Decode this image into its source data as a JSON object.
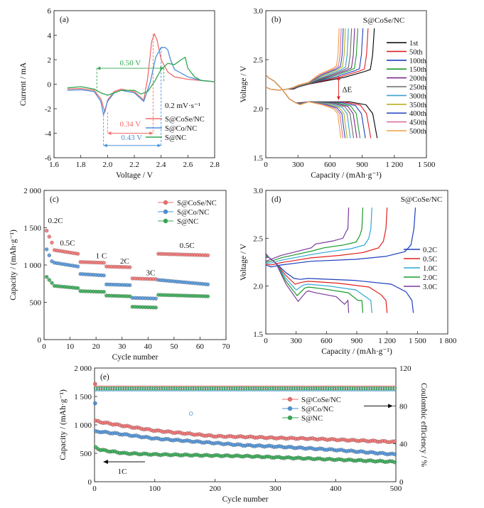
{
  "colors": {
    "cose": "#f26b6b",
    "co": "#4a90d9",
    "nc": "#2fa84f",
    "axis": "#222222",
    "cycles": [
      "#000000",
      "#e02020",
      "#1f3fbf",
      "#1a9a2a",
      "#7a2a8a",
      "#6a6a6a",
      "#3fa0d0",
      "#b8b020",
      "#3050c0",
      "#d870a0",
      "#f0a040"
    ],
    "rates": [
      "#1f3fbf",
      "#e02020",
      "#2fa8d8",
      "#1a9a2a",
      "#7a3a9a"
    ]
  },
  "chart_data": [
    {
      "panel": "a",
      "type": "line",
      "panel_label": "(a)",
      "xlabel": "Voltage / V",
      "ylabel": "Current / mA",
      "xlim": [
        1.6,
        2.8
      ],
      "ylim": [
        -6,
        6
      ],
      "xticks": [
        "1.6",
        "1.8",
        "2.0",
        "2.2",
        "2.4",
        "2.6",
        "2.8"
      ],
      "yticks": [
        "-6",
        "-4",
        "-2",
        "0",
        "2",
        "4",
        "6"
      ],
      "scan_rate_label": "0.2 mV·s⁻¹",
      "annotations": {
        "green_gap": "0.50 V",
        "red_gap": "0.34 V",
        "blue_gap": "0.43 V"
      },
      "series": [
        {
          "name": "S@CoSe/NC",
          "color_key": "cose",
          "x": [
            1.7,
            1.8,
            1.9,
            1.95,
            1.98,
            2.0,
            2.05,
            2.1,
            2.2,
            2.27,
            2.3,
            2.33,
            2.35,
            2.37,
            2.4,
            2.45,
            2.5,
            2.6,
            2.7,
            2.8
          ],
          "y": [
            -0.4,
            -0.35,
            -0.5,
            -1.2,
            -2.3,
            -1.3,
            -0.6,
            -0.4,
            -0.6,
            -1.3,
            0.5,
            3.5,
            4.1,
            3.6,
            2.0,
            1.0,
            0.6,
            0.4,
            0.3,
            0.2
          ]
        },
        {
          "name": "S@Co/NC",
          "color_key": "co",
          "x": [
            1.7,
            1.8,
            1.9,
            1.95,
            1.97,
            2.0,
            2.05,
            2.1,
            2.2,
            2.27,
            2.32,
            2.36,
            2.4,
            2.43,
            2.45,
            2.47,
            2.5,
            2.6,
            2.7,
            2.8
          ],
          "y": [
            -0.5,
            -0.45,
            -0.6,
            -1.4,
            -2.5,
            -1.4,
            -0.7,
            -0.5,
            -0.7,
            -1.4,
            0.2,
            2.2,
            3.0,
            3.0,
            2.8,
            2.0,
            1.2,
            0.6,
            0.3,
            0.2
          ]
        },
        {
          "name": "S@NC",
          "color_key": "nc",
          "x": [
            1.7,
            1.8,
            1.9,
            1.95,
            2.0,
            2.05,
            2.1,
            2.2,
            2.25,
            2.3,
            2.35,
            2.4,
            2.45,
            2.5,
            2.55,
            2.58,
            2.6,
            2.65,
            2.7,
            2.8
          ],
          "y": [
            -0.3,
            -0.2,
            -0.4,
            -0.7,
            -0.9,
            -0.7,
            -0.5,
            -0.5,
            -0.8,
            -0.6,
            0.2,
            1.2,
            1.7,
            1.6,
            2.0,
            2.2,
            1.3,
            0.6,
            0.3,
            0.2
          ]
        }
      ]
    },
    {
      "panel": "b",
      "type": "line",
      "panel_label": "(b)",
      "sample_label": "S@CoSe/NC",
      "xlabel": "Capacity / (mAh·g⁻¹)",
      "ylabel": "Voltage / V",
      "xlim": [
        0,
        1500
      ],
      "ylim": [
        1.5,
        3.0
      ],
      "xticks": [
        "0",
        "300",
        "600",
        "900",
        "1 200",
        "1 500"
      ],
      "yticks": [
        "1.5",
        "2.0",
        "2.5",
        "3.0"
      ],
      "annotation": "ΔE",
      "legend": [
        "1st",
        "50th",
        "100th",
        "150th",
        "200th",
        "250th",
        "300th",
        "350th",
        "400th",
        "450th",
        "500th"
      ],
      "discharge_capacity": [
        1040,
        980,
        930,
        880,
        850,
        820,
        790,
        760,
        740,
        720,
        700
      ],
      "charge_capacity": [
        1050,
        990,
        940,
        890,
        860,
        830,
        800,
        770,
        750,
        730,
        710
      ]
    },
    {
      "panel": "c",
      "type": "scatter",
      "panel_label": "(c)",
      "xlabel": "Cycle number",
      "ylabel": "Capacity / (mAh·g⁻¹)",
      "xlim": [
        0,
        70
      ],
      "ylim": [
        0,
        2000
      ],
      "xticks": [
        "0",
        "10",
        "20",
        "30",
        "40",
        "50",
        "60",
        "70"
      ],
      "yticks": [
        "0",
        "500",
        "1 000",
        "1 500",
        "2 000"
      ],
      "rate_labels": [
        "0.2C",
        "0.5C",
        "1 C",
        "2C",
        "3C",
        "0.5C"
      ],
      "series": [
        {
          "name": "S@CoSe/NC",
          "color_key": "cose",
          "steps": [
            [
              1,
              3,
              1460,
              1300
            ],
            [
              4,
              13,
              1200,
              1150
            ],
            [
              14,
              23,
              1040,
              1030
            ],
            [
              24,
              33,
              980,
              970
            ],
            [
              34,
              43,
              820,
              810
            ],
            [
              44,
              63,
              1150,
              1130
            ]
          ]
        },
        {
          "name": "S@Co/NC",
          "color_key": "co",
          "steps": [
            [
              1,
              3,
              1210,
              1050
            ],
            [
              4,
              13,
              1030,
              980
            ],
            [
              14,
              23,
              880,
              860
            ],
            [
              24,
              33,
              740,
              730
            ],
            [
              34,
              43,
              560,
              550
            ],
            [
              44,
              63,
              800,
              740
            ]
          ]
        },
        {
          "name": "S@NC",
          "color_key": "nc",
          "steps": [
            [
              1,
              3,
              840,
              760
            ],
            [
              4,
              13,
              720,
              690
            ],
            [
              14,
              23,
              650,
              640
            ],
            [
              24,
              33,
              590,
              580
            ],
            [
              34,
              43,
              440,
              430
            ],
            [
              44,
              63,
              600,
              580
            ]
          ]
        }
      ]
    },
    {
      "panel": "d",
      "type": "line",
      "panel_label": "(d)",
      "sample_label": "S@CoSe/NC",
      "xlabel": "Capacity / (mAh·g⁻¹)",
      "ylabel": "Voltage / V",
      "xlim": [
        0,
        1800
      ],
      "ylim": [
        1.5,
        3.0
      ],
      "xticks": [
        "0",
        "300",
        "600",
        "900",
        "1 200",
        "1 500",
        "1 800"
      ],
      "yticks": [
        "1.5",
        "2.0",
        "2.5",
        "3.0"
      ],
      "legend": [
        "0.2C",
        "0.5C",
        "1.0C",
        "2.0C",
        "3.0C"
      ],
      "discharge_capacity": [
        1460,
        1200,
        1050,
        960,
        820
      ],
      "charge_capacity": [
        1480,
        1200,
        1050,
        960,
        820
      ],
      "discharge_plateau_low": [
        2.08,
        2.05,
        2.02,
        1.99,
        1.95
      ],
      "charge_plateau_high": [
        2.38,
        2.42,
        2.45,
        2.48,
        2.52
      ]
    },
    {
      "panel": "e",
      "type": "scatter",
      "panel_label": "(e)",
      "xlabel": "Cycle number",
      "ylabel": "Capacity / (mAh·g⁻¹)",
      "y2label": "Coulombic efficiency / %",
      "xlim": [
        0,
        500
      ],
      "ylim": [
        0,
        2000
      ],
      "y2lim": [
        0,
        120
      ],
      "xticks": [
        "0",
        "100",
        "200",
        "300",
        "400",
        "500"
      ],
      "yticks": [
        "0",
        "500",
        "1 000",
        "1 500",
        "2 000"
      ],
      "y2ticks": [
        "0",
        "40",
        "80",
        "120"
      ],
      "rate_label": "1C",
      "series": [
        {
          "name": "S@CoSe/NC",
          "color_key": "cose",
          "x": [
            1,
            10,
            50,
            100,
            150,
            200,
            250,
            300,
            350,
            400,
            450,
            500
          ],
          "y": [
            1070,
            1050,
            980,
            900,
            850,
            800,
            790,
            770,
            760,
            740,
            720,
            700
          ],
          "ce": 99.5
        },
        {
          "name": "S@Co/NC",
          "color_key": "co",
          "x": [
            1,
            10,
            50,
            100,
            150,
            200,
            250,
            300,
            350,
            400,
            450,
            500
          ],
          "y": [
            880,
            880,
            830,
            760,
            720,
            680,
            640,
            620,
            590,
            560,
            520,
            480
          ],
          "ce": 97.5
        },
        {
          "name": "S@NC",
          "color_key": "nc",
          "x": [
            1,
            10,
            50,
            100,
            150,
            200,
            250,
            300,
            350,
            400,
            450,
            500
          ],
          "y": [
            610,
            560,
            500,
            480,
            470,
            460,
            450,
            430,
            410,
            390,
            370,
            350
          ],
          "ce": 98.5
        }
      ]
    }
  ]
}
